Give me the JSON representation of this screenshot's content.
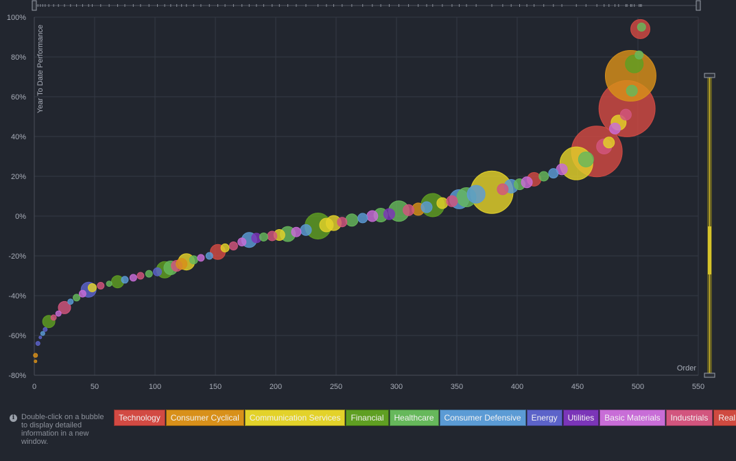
{
  "info": {
    "icon": "info-icon",
    "text": "Double-click on a bubble to display detailed information in a new window."
  },
  "colors": {
    "Technology": "#d24a43",
    "Consumer Cyclical": "#d8901a",
    "Communication Services": "#e3d22a",
    "Financial": "#5f9f22",
    "Healthcare": "#66b85b",
    "Consumer Defensive": "#5b9bd5",
    "Energy": "#5c63c9",
    "Utilities": "#7b35b8",
    "Basic Materials": "#c86dd7",
    "Industrials": "#d2557e",
    "Real Estate": "#cf4a40"
  },
  "legend": [
    "Technology",
    "Consumer Cyclical",
    "Communication Services",
    "Financial",
    "Healthcare",
    "Consumer Defensive",
    "Energy",
    "Utilities",
    "Basic Materials",
    "Industrials",
    "Real Estate"
  ],
  "chart_data": {
    "type": "scatter",
    "ylabel": "Year To Date Performance",
    "xlabel": "Order",
    "xlim": [
      0,
      550
    ],
    "ylim": [
      -80,
      100
    ],
    "xticks": [
      "0",
      "50",
      "100",
      "150",
      "200",
      "250",
      "300",
      "350",
      "400",
      "450",
      "500",
      "550"
    ],
    "yticks": [
      "-80%",
      "-60%",
      "-40%",
      "-20%",
      "0%",
      "20%",
      "40%",
      "60%",
      "80%",
      "100%"
    ],
    "grid": true,
    "points": [
      {
        "x": 1,
        "y": -73,
        "size": 2,
        "sector": "Consumer Cyclical"
      },
      {
        "x": 1,
        "y": -70,
        "size": 3,
        "sector": "Consumer Cyclical"
      },
      {
        "x": 3,
        "y": -64,
        "size": 3,
        "sector": "Energy"
      },
      {
        "x": 5,
        "y": -61,
        "size": 2,
        "sector": "Energy"
      },
      {
        "x": 7,
        "y": -59,
        "size": 3,
        "sector": "Consumer Defensive"
      },
      {
        "x": 9,
        "y": -57,
        "size": 3,
        "sector": "Energy"
      },
      {
        "x": 12,
        "y": -53,
        "size": 9,
        "sector": "Financial"
      },
      {
        "x": 16,
        "y": -51,
        "size": 4,
        "sector": "Industrials"
      },
      {
        "x": 20,
        "y": -49,
        "size": 4,
        "sector": "Basic Materials"
      },
      {
        "x": 25,
        "y": -46,
        "size": 9,
        "sector": "Industrials"
      },
      {
        "x": 30,
        "y": -43,
        "size": 4,
        "sector": "Consumer Defensive"
      },
      {
        "x": 35,
        "y": -41,
        "size": 5,
        "sector": "Healthcare"
      },
      {
        "x": 40,
        "y": -39,
        "size": 5,
        "sector": "Basic Materials"
      },
      {
        "x": 45,
        "y": -37,
        "size": 11,
        "sector": "Energy"
      },
      {
        "x": 48,
        "y": -36,
        "size": 6,
        "sector": "Communication Services"
      },
      {
        "x": 55,
        "y": -35,
        "size": 5,
        "sector": "Industrials"
      },
      {
        "x": 62,
        "y": -34,
        "size": 4,
        "sector": "Healthcare"
      },
      {
        "x": 69,
        "y": -33,
        "size": 9,
        "sector": "Financial"
      },
      {
        "x": 75,
        "y": -32,
        "size": 5,
        "sector": "Consumer Defensive"
      },
      {
        "x": 82,
        "y": -31,
        "size": 5,
        "sector": "Basic Materials"
      },
      {
        "x": 88,
        "y": -30,
        "size": 5,
        "sector": "Industrials"
      },
      {
        "x": 95,
        "y": -29,
        "size": 5,
        "sector": "Healthcare"
      },
      {
        "x": 102,
        "y": -28,
        "size": 6,
        "sector": "Energy"
      },
      {
        "x": 108,
        "y": -27,
        "size": 12,
        "sector": "Financial"
      },
      {
        "x": 113,
        "y": -26,
        "size": 10,
        "sector": "Healthcare"
      },
      {
        "x": 118,
        "y": -25,
        "size": 8,
        "sector": "Industrials"
      },
      {
        "x": 122,
        "y": -24,
        "size": 8,
        "sector": "Consumer Cyclical"
      },
      {
        "x": 126,
        "y": -23,
        "size": 12,
        "sector": "Communication Services"
      },
      {
        "x": 132,
        "y": -22,
        "size": 6,
        "sector": "Healthcare"
      },
      {
        "x": 138,
        "y": -21,
        "size": 5,
        "sector": "Basic Materials"
      },
      {
        "x": 145,
        "y": -20,
        "size": 5,
        "sector": "Consumer Defensive"
      },
      {
        "x": 152,
        "y": -18,
        "size": 11,
        "sector": "Technology"
      },
      {
        "x": 158,
        "y": -16,
        "size": 6,
        "sector": "Communication Services"
      },
      {
        "x": 165,
        "y": -15,
        "size": 6,
        "sector": "Industrials"
      },
      {
        "x": 172,
        "y": -13,
        "size": 6,
        "sector": "Basic Materials"
      },
      {
        "x": 178,
        "y": -12,
        "size": 11,
        "sector": "Consumer Defensive"
      },
      {
        "x": 184,
        "y": -11,
        "size": 7,
        "sector": "Utilities"
      },
      {
        "x": 190,
        "y": -10.5,
        "size": 6,
        "sector": "Healthcare"
      },
      {
        "x": 197,
        "y": -10,
        "size": 7,
        "sector": "Industrials"
      },
      {
        "x": 203,
        "y": -9.5,
        "size": 8,
        "sector": "Communication Services"
      },
      {
        "x": 210,
        "y": -9,
        "size": 11,
        "sector": "Healthcare"
      },
      {
        "x": 217,
        "y": -8,
        "size": 7,
        "sector": "Basic Materials"
      },
      {
        "x": 225,
        "y": -7,
        "size": 8,
        "sector": "Consumer Defensive"
      },
      {
        "x": 235,
        "y": -5,
        "size": 19,
        "sector": "Financial"
      },
      {
        "x": 242,
        "y": -4.5,
        "size": 10,
        "sector": "Communication Services"
      },
      {
        "x": 248,
        "y": -3.5,
        "size": 11,
        "sector": "Communication Services"
      },
      {
        "x": 255,
        "y": -3,
        "size": 7,
        "sector": "Industrials"
      },
      {
        "x": 263,
        "y": -2,
        "size": 9,
        "sector": "Healthcare"
      },
      {
        "x": 272,
        "y": -1,
        "size": 7,
        "sector": "Consumer Defensive"
      },
      {
        "x": 280,
        "y": 0,
        "size": 8,
        "sector": "Basic Materials"
      },
      {
        "x": 287,
        "y": 0.5,
        "size": 10,
        "sector": "Healthcare"
      },
      {
        "x": 294,
        "y": 1,
        "size": 8,
        "sector": "Utilities"
      },
      {
        "x": 302,
        "y": 2.5,
        "size": 15,
        "sector": "Healthcare"
      },
      {
        "x": 310,
        "y": 3,
        "size": 8,
        "sector": "Industrials"
      },
      {
        "x": 318,
        "y": 3.5,
        "size": 9,
        "sector": "Consumer Cyclical"
      },
      {
        "x": 325,
        "y": 4.5,
        "size": 8,
        "sector": "Consumer Defensive"
      },
      {
        "x": 330,
        "y": 5.5,
        "size": 17,
        "sector": "Financial"
      },
      {
        "x": 338,
        "y": 6.5,
        "size": 8,
        "sector": "Communication Services"
      },
      {
        "x": 346,
        "y": 7.5,
        "size": 8,
        "sector": "Industrials"
      },
      {
        "x": 352,
        "y": 8.5,
        "size": 14,
        "sector": "Consumer Defensive"
      },
      {
        "x": 358,
        "y": 9.5,
        "size": 14,
        "sector": "Healthcare"
      },
      {
        "x": 366,
        "y": 11,
        "size": 13,
        "sector": "Consumer Defensive"
      },
      {
        "x": 379,
        "y": 12,
        "size": 31,
        "sector": "Communication Services"
      },
      {
        "x": 388,
        "y": 13.5,
        "size": 8,
        "sector": "Industrials"
      },
      {
        "x": 395,
        "y": 15,
        "size": 10,
        "sector": "Consumer Defensive"
      },
      {
        "x": 402,
        "y": 16,
        "size": 8,
        "sector": "Healthcare"
      },
      {
        "x": 408,
        "y": 17,
        "size": 8,
        "sector": "Basic Materials"
      },
      {
        "x": 414,
        "y": 18.5,
        "size": 10,
        "sector": "Technology"
      },
      {
        "x": 422,
        "y": 20,
        "size": 7,
        "sector": "Healthcare"
      },
      {
        "x": 430,
        "y": 21.5,
        "size": 7,
        "sector": "Consumer Defensive"
      },
      {
        "x": 437,
        "y": 23.5,
        "size": 8,
        "sector": "Basic Materials"
      },
      {
        "x": 449,
        "y": 26.5,
        "size": 24,
        "sector": "Communication Services"
      },
      {
        "x": 457,
        "y": 28.5,
        "size": 11,
        "sector": "Healthcare"
      },
      {
        "x": 466,
        "y": 32.5,
        "size": 37,
        "sector": "Technology"
      },
      {
        "x": 472,
        "y": 35,
        "size": 11,
        "sector": "Industrials"
      },
      {
        "x": 476,
        "y": 37,
        "size": 8,
        "sector": "Communication Services"
      },
      {
        "x": 481,
        "y": 44,
        "size": 8,
        "sector": "Basic Materials"
      },
      {
        "x": 484,
        "y": 47,
        "size": 11,
        "sector": "Communication Services"
      },
      {
        "x": 490,
        "y": 51,
        "size": 8,
        "sector": "Industrials"
      },
      {
        "x": 491,
        "y": 54,
        "size": 41,
        "sector": "Technology"
      },
      {
        "x": 495,
        "y": 63,
        "size": 8,
        "sector": "Healthcare"
      },
      {
        "x": 494,
        "y": 70.5,
        "size": 37,
        "sector": "Consumer Cyclical"
      },
      {
        "x": 497,
        "y": 76.5,
        "size": 13,
        "sector": "Financial"
      },
      {
        "x": 501,
        "y": 81,
        "size": 6,
        "sector": "Healthcare"
      },
      {
        "x": 502,
        "y": 94,
        "size": 14,
        "sector": "Technology"
      },
      {
        "x": 503,
        "y": 95,
        "size": 6,
        "sector": "Healthcare"
      }
    ]
  }
}
